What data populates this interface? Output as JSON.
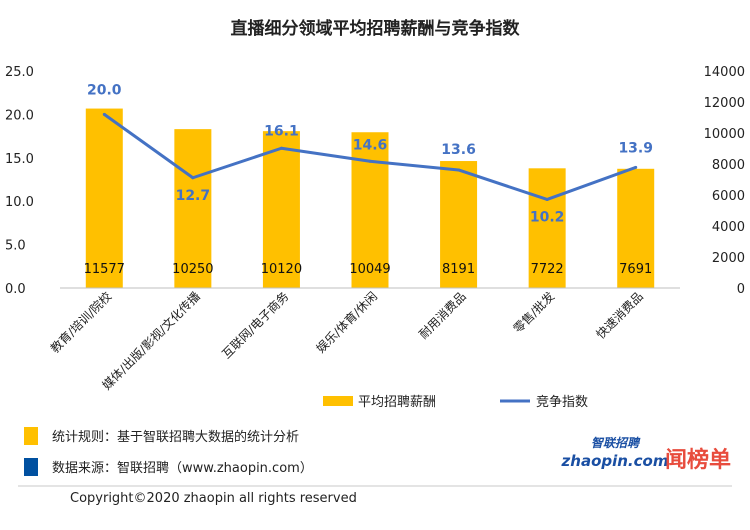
{
  "chart_data": {
    "type": "bar",
    "title": "直播细分领域平均招聘薪酬与竞争指数",
    "categories": [
      "教育/培训/院校",
      "媒体/出版/影视/文化传播",
      "互联网/电子商务",
      "娱乐/体育/休闲",
      "耐用消费品",
      "零售/批发",
      "快速消费品"
    ],
    "series": [
      {
        "name": "平均招聘薪酬",
        "type": "bar",
        "axis": "right",
        "color": "#FFC000",
        "values": [
          11577,
          10250,
          10120,
          10049,
          8191,
          7722,
          7691
        ]
      },
      {
        "name": "竞争指数",
        "type": "line",
        "axis": "left",
        "color": "#4472C4",
        "values": [
          20.0,
          12.7,
          16.1,
          14.6,
          13.6,
          10.2,
          13.9
        ]
      }
    ],
    "bar_labels": [
      "11577",
      "10250",
      "10120",
      "10049",
      "8191",
      "7722",
      "7691"
    ],
    "line_labels": [
      "20.0",
      "12.7",
      "16.1",
      "14.6",
      "13.6",
      "10.2",
      "13.9"
    ],
    "left_axis": {
      "ylim": [
        0,
        25
      ],
      "ticks": [
        "0.0",
        "5.0",
        "10.0",
        "15.0",
        "20.0",
        "25.0"
      ]
    },
    "right_axis": {
      "ylim": [
        0,
        14000
      ],
      "ticks": [
        "0",
        "2000",
        "4000",
        "6000",
        "8000",
        "10000",
        "12000",
        "14000"
      ]
    },
    "grid": false,
    "legend_position": "bottom"
  },
  "footer": {
    "note1": "统计规则：基于智联招聘大数据的统计分析",
    "note2": "数据来源：智联招聘（www.zhaopin.com）",
    "note1_color": "#FFC000",
    "note2_color": "#0050A0",
    "copyright": "Copyright©2020 zhaopin all rights reserved"
  },
  "logos": {
    "zhaopin_top": "智联招聘",
    "zhaopin_bottom": "zhaopin.com",
    "brand": "闻榜单"
  }
}
